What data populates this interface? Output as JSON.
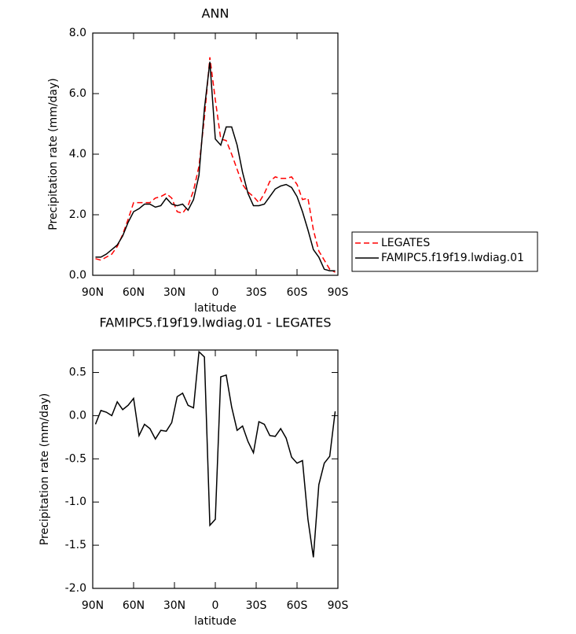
{
  "chart_data": [
    {
      "type": "line",
      "title": "ANN",
      "x_label": "latitude",
      "y_label": "Precipitation rate (mm/day)",
      "x": [
        88,
        84,
        80,
        76,
        72,
        68,
        64,
        60,
        56,
        52,
        48,
        44,
        40,
        36,
        32,
        28,
        24,
        20,
        16,
        12,
        8,
        4,
        0,
        -4,
        -8,
        -12,
        -16,
        -20,
        -24,
        -28,
        -32,
        -36,
        -40,
        -44,
        -48,
        -52,
        -56,
        -60,
        -64,
        -68,
        -72,
        -76,
        -80,
        -84,
        -88
      ],
      "xlim": [
        90,
        -90
      ],
      "xticks": [
        {
          "value": 90,
          "label": "90N"
        },
        {
          "value": 60,
          "label": "60N"
        },
        {
          "value": 30,
          "label": "30N"
        },
        0,
        {
          "value": -30,
          "label": "30S"
        },
        {
          "value": -60,
          "label": "60S"
        },
        {
          "value": -90,
          "label": "90S"
        }
      ],
      "ylim": [
        0,
        8
      ],
      "yticks": [
        {
          "value": 0,
          "label": "0.0"
        },
        {
          "value": 2,
          "label": "2.0"
        },
        {
          "value": 4,
          "label": "4.0"
        },
        {
          "value": 6,
          "label": "6.0"
        },
        {
          "value": 8,
          "label": "8.0"
        }
      ],
      "legend": "right",
      "series": [
        {
          "name": "LEGATES",
          "color": "#ff0000",
          "style": "dashed",
          "values": [
            0.55,
            0.5,
            0.6,
            0.7,
            0.95,
            1.35,
            1.85,
            2.4,
            2.4,
            2.4,
            2.4,
            2.55,
            2.6,
            2.7,
            2.55,
            2.1,
            2.05,
            2.3,
            2.8,
            3.6,
            5.2,
            7.2,
            5.8,
            4.5,
            4.45,
            4.0,
            3.5,
            3.0,
            2.75,
            2.6,
            2.4,
            2.7,
            3.1,
            3.25,
            3.2,
            3.2,
            3.25,
            3.0,
            2.5,
            2.55,
            1.5,
            0.8,
            0.5,
            0.2,
            0.1
          ]
        },
        {
          "name": "FAMIPC5.f19f19.lwdiag.01",
          "color": "#000000",
          "style": "solid",
          "values": [
            0.6,
            0.6,
            0.7,
            0.85,
            1.0,
            1.3,
            1.75,
            2.1,
            2.2,
            2.35,
            2.35,
            2.25,
            2.3,
            2.55,
            2.35,
            2.3,
            2.35,
            2.15,
            2.5,
            3.3,
            5.5,
            7.05,
            4.5,
            4.3,
            4.9,
            4.9,
            4.3,
            3.4,
            2.7,
            2.3,
            2.3,
            2.35,
            2.6,
            2.85,
            2.95,
            3.0,
            2.9,
            2.6,
            2.1,
            1.5,
            0.85,
            0.6,
            0.2,
            0.15,
            0.15
          ]
        }
      ]
    },
    {
      "type": "line",
      "title": "FAMIPC5.f19f19.lwdiag.01 - LEGATES",
      "x_label": "latitude",
      "y_label": "Precipitation rate (mm/day)",
      "x": [
        88,
        84,
        80,
        76,
        72,
        68,
        64,
        60,
        56,
        52,
        48,
        44,
        40,
        36,
        32,
        28,
        24,
        20,
        16,
        12,
        8,
        4,
        0,
        -4,
        -8,
        -12,
        -16,
        -20,
        -24,
        -28,
        -32,
        -36,
        -40,
        -44,
        -48,
        -52,
        -56,
        -60,
        -64,
        -68,
        -72,
        -76,
        -80,
        -84,
        -88
      ],
      "xlim": [
        90,
        -90
      ],
      "xticks": [
        {
          "value": 90,
          "label": "90N"
        },
        {
          "value": 60,
          "label": "60N"
        },
        {
          "value": 30,
          "label": "30N"
        },
        0,
        {
          "value": -30,
          "label": "30S"
        },
        {
          "value": -60,
          "label": "60S"
        },
        {
          "value": -90,
          "label": "90S"
        }
      ],
      "ylim": [
        -2,
        0.76
      ],
      "yticks": [
        0.5,
        {
          "value": 0,
          "label": "0.0"
        },
        -0.5,
        {
          "value": -1,
          "label": "-1.0"
        },
        -1.5,
        {
          "value": -2,
          "label": "-2.0"
        }
      ],
      "color": "#000000",
      "values": [
        -0.1,
        0.06,
        0.04,
        0.0,
        0.16,
        0.07,
        0.12,
        0.2,
        -0.23,
        -0.1,
        -0.15,
        -0.27,
        -0.17,
        -0.18,
        -0.08,
        0.22,
        0.26,
        0.12,
        0.09,
        0.74,
        0.68,
        -1.27,
        -1.2,
        0.45,
        0.47,
        0.1,
        -0.17,
        -0.12,
        -0.3,
        -0.43,
        -0.07,
        -0.1,
        -0.23,
        -0.24,
        -0.15,
        -0.26,
        -0.48,
        -0.55,
        -0.52,
        -1.2,
        -1.64,
        -0.8,
        -0.55,
        -0.47,
        0.05
      ]
    }
  ]
}
